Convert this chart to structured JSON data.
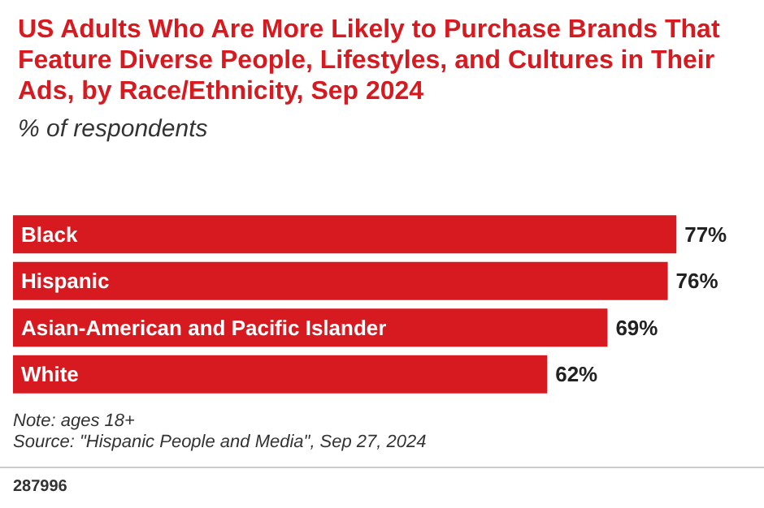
{
  "chart_data": {
    "type": "bar",
    "orientation": "horizontal",
    "title": "US Adults Who Are More Likely to Purchase Brands That Feature Diverse People, Lifestyles, and Cultures in Their Ads, by Race/Ethnicity, Sep 2024",
    "subtitle": "% of respondents",
    "categories": [
      "Black",
      "Hispanic",
      "Asian-American and Pacific Islander",
      "White"
    ],
    "values": [
      77,
      76,
      69,
      62
    ],
    "color": "#d71920",
    "value_labels": [
      "77%",
      "76%",
      "69%",
      "62%"
    ],
    "annotations": [
      "Note: ages 18+",
      "Source: \"Hispanic People and Media\", Sep 27, 2024",
      "287996"
    ]
  }
}
